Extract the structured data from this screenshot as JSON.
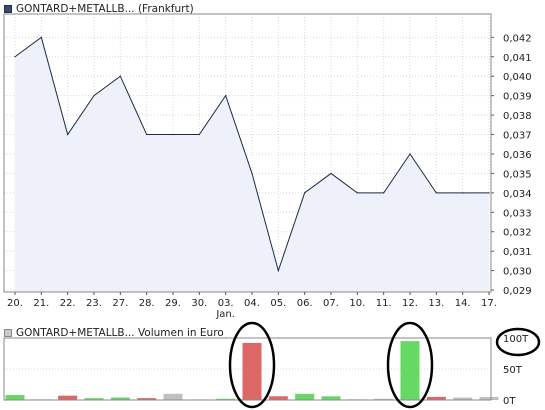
{
  "price_legend": "GONTARD+METALLB... (Frankfurt)",
  "volume_legend": "GONTARD+METALLB... Volumen in Euro",
  "chart_data": [
    {
      "type": "area",
      "categories": [
        "20.",
        "21.",
        "22.",
        "23.",
        "27.",
        "28.",
        "29.",
        "30.",
        "03.",
        "04.",
        "05.",
        "06.",
        "07.",
        "10.",
        "11.",
        "12.",
        "13.",
        "14.",
        "17."
      ],
      "category_sublabels": {
        "03.": "Jan."
      },
      "values": [
        0.041,
        0.042,
        0.037,
        0.039,
        0.04,
        0.037,
        0.037,
        0.037,
        0.039,
        0.035,
        0.03,
        0.034,
        0.035,
        0.034,
        0.034,
        0.036,
        0.034,
        0.034,
        0.034
      ],
      "y_ticks": [
        "0,029",
        "0,030",
        "0,031",
        "0,032",
        "0,033",
        "0,034",
        "0,035",
        "0,036",
        "0,037",
        "0,038",
        "0,039",
        "0,040",
        "0,041",
        "0,042"
      ],
      "ylim": [
        0.0289,
        0.0432
      ],
      "line_color": "#1c2a4a",
      "fill_color": "#eef1fa",
      "grid": true
    },
    {
      "type": "bar",
      "categories": [
        "20.",
        "21.",
        "22.",
        "23.",
        "27.",
        "28.",
        "29.",
        "30.",
        "03.",
        "04.",
        "05.",
        "06.",
        "07.",
        "10.",
        "11.",
        "12.",
        "13.",
        "14.",
        "17."
      ],
      "values": [
        8,
        1,
        7,
        3,
        4,
        3,
        10,
        1,
        2,
        92,
        6,
        10,
        6,
        1,
        2,
        95,
        5,
        4,
        5
      ],
      "bar_colors": [
        "green",
        "green",
        "red",
        "green",
        "green",
        "red",
        "gray",
        "gray",
        "green",
        "red",
        "red",
        "green",
        "green",
        "red",
        "gray",
        "green",
        "red",
        "gray",
        "gray"
      ],
      "y_ticks": [
        "0T",
        "50T",
        "100T"
      ],
      "ylim": [
        0,
        100
      ],
      "palette": {
        "green": "#66d866",
        "red": "#dd6666",
        "gray": "#c0c0c0"
      },
      "annotations": [
        "circle around bar 04.",
        "circle around bar 12.",
        "circle around label 100T"
      ]
    }
  ]
}
